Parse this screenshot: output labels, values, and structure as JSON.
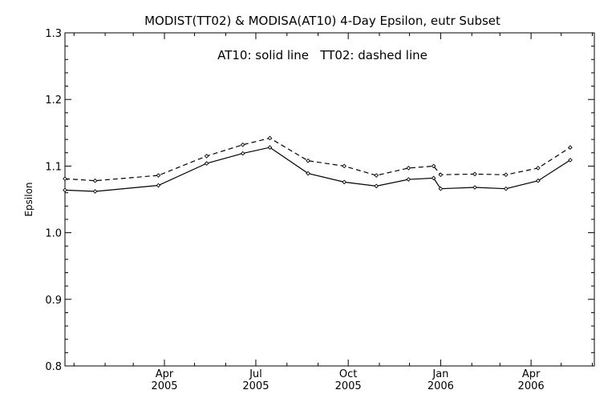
{
  "chart_data": {
    "type": "line",
    "title": "MODIST(TT02) & MODISA(AT10) 4-Day Epsilon, eutr Subset",
    "annotation": "AT10: solid line   TT02: dashed line",
    "ylabel": "Epsilon",
    "xlabel": "",
    "ylim": [
      0.8,
      1.3
    ],
    "xlim": [
      "2004-12-23",
      "2006-06-03"
    ],
    "yticks": [
      "0.8",
      "0.9",
      "1.0",
      "1.1",
      "1.2",
      "1.3"
    ],
    "xticks": [
      {
        "date": "2005-04-01",
        "month": "Apr",
        "year": "2005"
      },
      {
        "date": "2005-07-01",
        "month": "Jul",
        "year": "2005"
      },
      {
        "date": "2005-10-01",
        "month": "Oct",
        "year": "2005"
      },
      {
        "date": "2006-01-01",
        "month": "Jan",
        "year": "2006"
      },
      {
        "date": "2006-04-01",
        "month": "Apr",
        "year": "2006"
      }
    ],
    "grid": false,
    "series": [
      {
        "name": "AT10",
        "style": "solid",
        "color": "#000000",
        "points": [
          {
            "x": "2004-12-23",
            "y": 1.064
          },
          {
            "x": "2005-01-22",
            "y": 1.062
          },
          {
            "x": "2005-03-26",
            "y": 1.071
          },
          {
            "x": "2005-05-13",
            "y": 1.104
          },
          {
            "x": "2005-06-18",
            "y": 1.119
          },
          {
            "x": "2005-07-15",
            "y": 1.128
          },
          {
            "x": "2005-08-22",
            "y": 1.089
          },
          {
            "x": "2005-09-27",
            "y": 1.076
          },
          {
            "x": "2005-10-29",
            "y": 1.07
          },
          {
            "x": "2005-11-30",
            "y": 1.08
          },
          {
            "x": "2005-12-25",
            "y": 1.082
          },
          {
            "x": "2006-01-01",
            "y": 1.066
          },
          {
            "x": "2006-02-04",
            "y": 1.068
          },
          {
            "x": "2006-03-07",
            "y": 1.066
          },
          {
            "x": "2006-04-08",
            "y": 1.078
          },
          {
            "x": "2006-05-10",
            "y": 1.109
          }
        ]
      },
      {
        "name": "TT02",
        "style": "dashed",
        "color": "#000000",
        "points": [
          {
            "x": "2004-12-23",
            "y": 1.081
          },
          {
            "x": "2005-01-22",
            "y": 1.078
          },
          {
            "x": "2005-03-26",
            "y": 1.086
          },
          {
            "x": "2005-05-13",
            "y": 1.115
          },
          {
            "x": "2005-06-18",
            "y": 1.132
          },
          {
            "x": "2005-07-15",
            "y": 1.142
          },
          {
            "x": "2005-08-22",
            "y": 1.108
          },
          {
            "x": "2005-09-27",
            "y": 1.1
          },
          {
            "x": "2005-10-29",
            "y": 1.086
          },
          {
            "x": "2005-11-30",
            "y": 1.097
          },
          {
            "x": "2005-12-25",
            "y": 1.1
          },
          {
            "x": "2006-01-01",
            "y": 1.087
          },
          {
            "x": "2006-02-04",
            "y": 1.088
          },
          {
            "x": "2006-03-07",
            "y": 1.087
          },
          {
            "x": "2006-04-08",
            "y": 1.097
          },
          {
            "x": "2006-05-10",
            "y": 1.128
          }
        ]
      }
    ]
  }
}
